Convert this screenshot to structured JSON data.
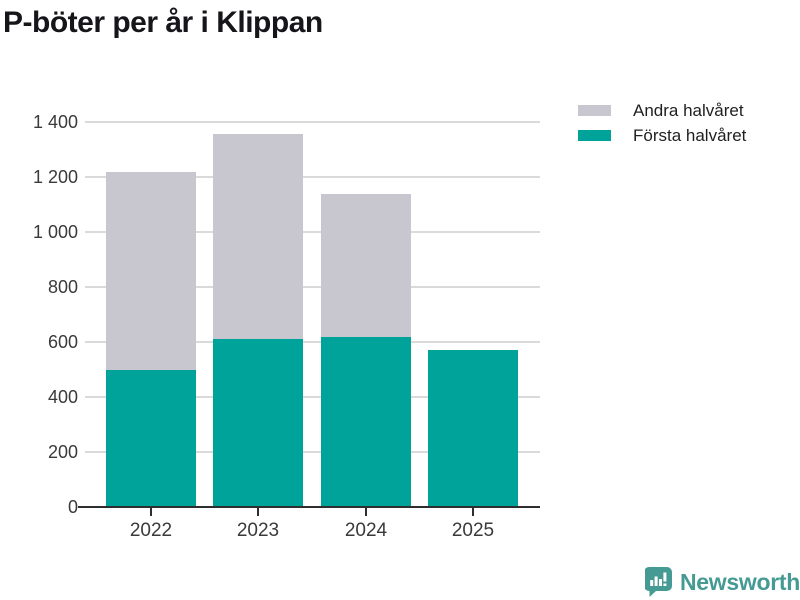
{
  "title": "P-böter per år i Klippan",
  "colors": {
    "first_half": "#00a39a",
    "second_half": "#c8c7d0",
    "gridline": "#dadada",
    "axis": "#2e2e2e",
    "logo_teal": "#459b93"
  },
  "legend": {
    "items": [
      {
        "label": "Andra halvåret",
        "color": "#c8c7d0"
      },
      {
        "label": "Första halvåret",
        "color": "#00a39a"
      }
    ]
  },
  "chart_data": {
    "type": "bar",
    "stacked": true,
    "title": "P-böter per år i Klippan",
    "categories": [
      "2022",
      "2023",
      "2024",
      "2025"
    ],
    "series": [
      {
        "name": "Första halvåret",
        "color": "#00a39a",
        "values": [
          500,
          610,
          620,
          570
        ]
      },
      {
        "name": "Andra halvåret",
        "color": "#c8c7d0",
        "values": [
          720,
          745,
          520,
          0
        ]
      }
    ],
    "totals": [
      1220,
      1355,
      1140,
      570
    ],
    "xlabel": "",
    "ylabel": "",
    "ylim": [
      0,
      1400
    ],
    "ytick_interval": 200,
    "ytick_labels": [
      "0",
      "200",
      "400",
      "600",
      "800",
      "1 000",
      "1 200",
      "1 400"
    ],
    "grid": true,
    "legend_position": "top-right"
  },
  "footer": {
    "brand": "Newsworthy"
  }
}
